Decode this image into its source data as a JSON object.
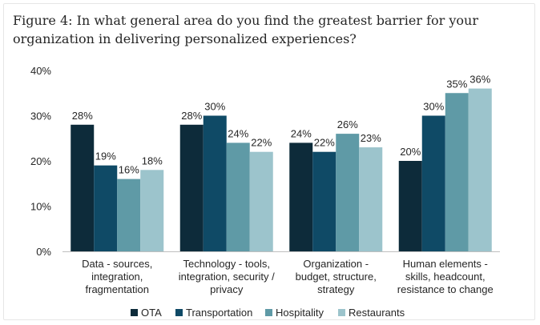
{
  "title": "Figure 4: In what general area do you find the greatest barrier for your organization in delivering personalized experiences?",
  "chart_data": {
    "type": "bar",
    "categories": [
      [
        "Data - sources,",
        "integration,",
        "fragmentation"
      ],
      [
        "Technology - tools,",
        "integration, security /",
        "privacy"
      ],
      [
        "Organization -",
        "budget, structure,",
        "strategy"
      ],
      [
        "Human elements -",
        "skills, headcount,",
        "resistance to change"
      ]
    ],
    "series": [
      {
        "name": "OTA",
        "color": "#0d2b3a",
        "values": [
          28,
          28,
          24,
          20
        ]
      },
      {
        "name": "Transportation",
        "color": "#0f4a66",
        "values": [
          19,
          30,
          22,
          30
        ]
      },
      {
        "name": "Hospitality",
        "color": "#5f9aa6",
        "values": [
          16,
          24,
          26,
          35
        ]
      },
      {
        "name": "Restaurants",
        "color": "#9cc4cc",
        "values": [
          18,
          22,
          23,
          36
        ]
      }
    ],
    "value_suffix": "%",
    "ylim": [
      0,
      40
    ],
    "yticks": [
      "0%",
      "10%",
      "20%",
      "30%",
      "40%"
    ],
    "grid": false,
    "legend_position": "bottom"
  }
}
